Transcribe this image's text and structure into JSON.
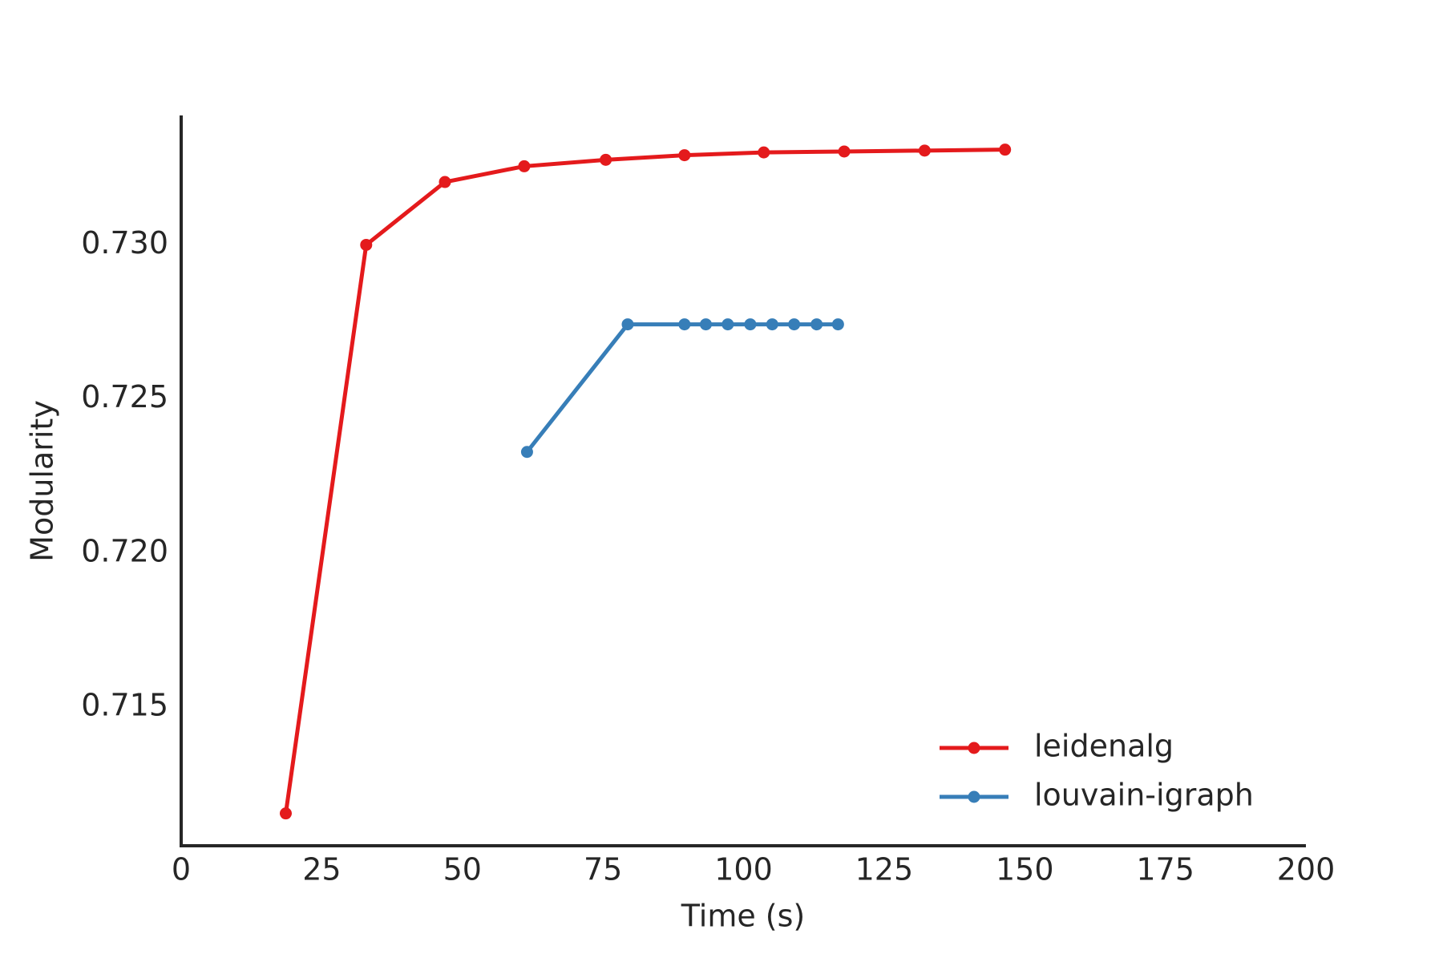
{
  "chart_data": {
    "type": "line",
    "x_label": "Time (s)",
    "y_label": "Modularity",
    "xlim": [
      0,
      200
    ],
    "xticks": [
      0,
      25,
      50,
      75,
      100,
      125,
      150,
      175,
      200
    ],
    "ylim": [
      0.7105,
      0.7342
    ],
    "yticks": [
      0.715,
      {
        "value": 0.72,
        "label": "0.720"
      },
      0.725,
      {
        "value": 0.73,
        "label": "0.730"
      }
    ],
    "grid": false,
    "legend": "lower right",
    "series": [
      {
        "name": "leidenalg",
        "color": "#e41a1c",
        "x": [
          18.6,
          32.9,
          46.9,
          61.0,
          75.5,
          89.5,
          103.6,
          117.9,
          132.2,
          146.5
        ],
        "values": [
          0.71155,
          0.73,
          0.73204,
          0.73255,
          0.73276,
          0.73291,
          0.733,
          0.73303,
          0.73306,
          0.73309
        ]
      },
      {
        "name": "louvain-igraph",
        "color": "#377eb8",
        "x": [
          61.5,
          79.4,
          89.5,
          93.3,
          97.2,
          101.2,
          105.1,
          109.0,
          113.0,
          116.8
        ],
        "values": [
          0.72328,
          0.72742,
          0.72742,
          0.72742,
          0.72742,
          0.72742,
          0.72742,
          0.72742,
          0.72742,
          0.72742
        ]
      }
    ]
  }
}
